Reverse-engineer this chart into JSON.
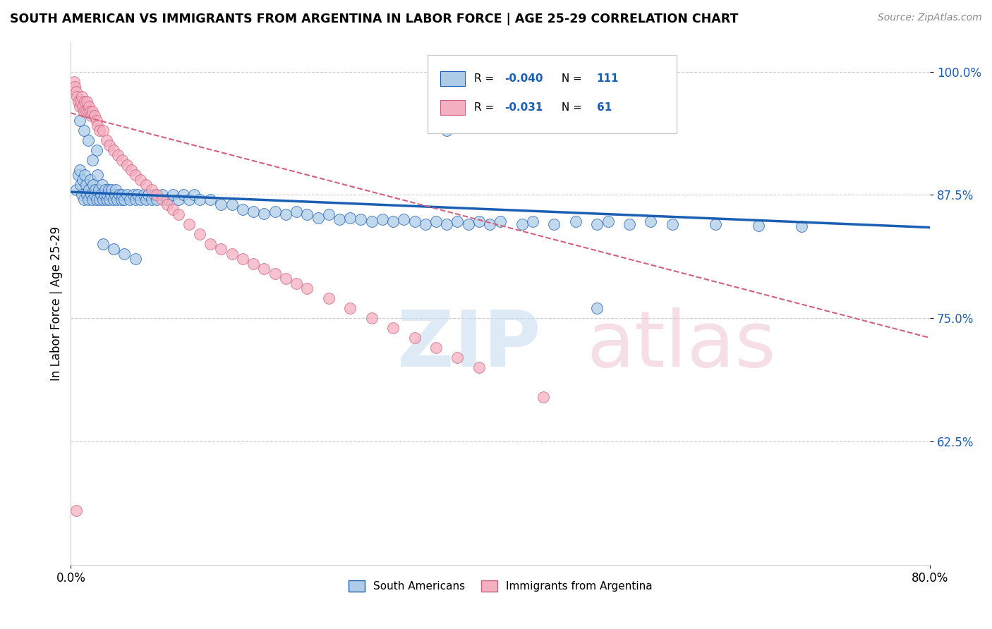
{
  "title": "SOUTH AMERICAN VS IMMIGRANTS FROM ARGENTINA IN LABOR FORCE | AGE 25-29 CORRELATION CHART",
  "source": "Source: ZipAtlas.com",
  "ylabel": "In Labor Force | Age 25-29",
  "xlim": [
    0.0,
    0.8
  ],
  "ylim": [
    0.5,
    1.03
  ],
  "yticks": [
    0.625,
    0.75,
    0.875,
    1.0
  ],
  "ytick_labels": [
    "62.5%",
    "75.0%",
    "87.5%",
    "100.0%"
  ],
  "xticks": [
    0.0,
    0.8
  ],
  "xtick_labels": [
    "0.0%",
    "80.0%"
  ],
  "blue_R": -0.04,
  "blue_N": 111,
  "pink_R": -0.031,
  "pink_N": 61,
  "blue_color": "#aecce8",
  "pink_color": "#f4afc0",
  "trend_blue_color": "#1a5fb4",
  "trend_pink_color": "#d46080",
  "legend_blue_label": "South Americans",
  "legend_pink_label": "Immigrants from Argentina",
  "blue_trend_x0": 0.0,
  "blue_trend_y0": 0.878,
  "blue_trend_x1": 0.8,
  "blue_trend_y1": 0.842,
  "pink_trend_x0": 0.0,
  "pink_trend_y0": 0.958,
  "pink_trend_x1": 0.8,
  "pink_trend_y1": 0.73,
  "blue_x": [
    0.005,
    0.007,
    0.008,
    0.009,
    0.01,
    0.011,
    0.012,
    0.013,
    0.014,
    0.015,
    0.016,
    0.017,
    0.018,
    0.019,
    0.02,
    0.021,
    0.022,
    0.023,
    0.024,
    0.025,
    0.026,
    0.027,
    0.028,
    0.029,
    0.03,
    0.031,
    0.032,
    0.033,
    0.034,
    0.035,
    0.036,
    0.037,
    0.038,
    0.04,
    0.041,
    0.042,
    0.043,
    0.045,
    0.047,
    0.048,
    0.05,
    0.052,
    0.055,
    0.058,
    0.06,
    0.062,
    0.065,
    0.068,
    0.07,
    0.072,
    0.075,
    0.078,
    0.08,
    0.085,
    0.09,
    0.095,
    0.1,
    0.105,
    0.11,
    0.115,
    0.12,
    0.13,
    0.14,
    0.15,
    0.16,
    0.17,
    0.18,
    0.19,
    0.2,
    0.21,
    0.22,
    0.23,
    0.24,
    0.25,
    0.26,
    0.27,
    0.28,
    0.29,
    0.3,
    0.31,
    0.32,
    0.33,
    0.34,
    0.35,
    0.36,
    0.37,
    0.38,
    0.39,
    0.4,
    0.42,
    0.43,
    0.45,
    0.47,
    0.49,
    0.5,
    0.52,
    0.54,
    0.56,
    0.6,
    0.64,
    0.68,
    0.024,
    0.016,
    0.012,
    0.008,
    0.02,
    0.03,
    0.04,
    0.05,
    0.06,
    0.35,
    0.49
  ],
  "blue_y": [
    0.88,
    0.895,
    0.9,
    0.885,
    0.875,
    0.89,
    0.87,
    0.895,
    0.885,
    0.875,
    0.87,
    0.88,
    0.89,
    0.875,
    0.87,
    0.885,
    0.875,
    0.88,
    0.87,
    0.895,
    0.88,
    0.87,
    0.875,
    0.885,
    0.87,
    0.875,
    0.88,
    0.87,
    0.875,
    0.88,
    0.87,
    0.875,
    0.88,
    0.87,
    0.875,
    0.88,
    0.87,
    0.875,
    0.87,
    0.875,
    0.87,
    0.875,
    0.87,
    0.875,
    0.87,
    0.875,
    0.87,
    0.875,
    0.87,
    0.875,
    0.87,
    0.875,
    0.87,
    0.875,
    0.87,
    0.875,
    0.87,
    0.875,
    0.87,
    0.875,
    0.87,
    0.87,
    0.865,
    0.865,
    0.86,
    0.858,
    0.856,
    0.858,
    0.855,
    0.858,
    0.855,
    0.852,
    0.855,
    0.85,
    0.852,
    0.85,
    0.848,
    0.85,
    0.848,
    0.85,
    0.848,
    0.845,
    0.848,
    0.845,
    0.848,
    0.845,
    0.848,
    0.845,
    0.848,
    0.845,
    0.848,
    0.845,
    0.848,
    0.845,
    0.848,
    0.845,
    0.848,
    0.845,
    0.845,
    0.844,
    0.843,
    0.92,
    0.93,
    0.94,
    0.95,
    0.91,
    0.825,
    0.82,
    0.815,
    0.81,
    0.94,
    0.76
  ],
  "pink_x": [
    0.003,
    0.004,
    0.005,
    0.006,
    0.007,
    0.008,
    0.009,
    0.01,
    0.011,
    0.012,
    0.013,
    0.014,
    0.015,
    0.016,
    0.017,
    0.018,
    0.019,
    0.02,
    0.022,
    0.024,
    0.025,
    0.027,
    0.03,
    0.033,
    0.036,
    0.04,
    0.044,
    0.048,
    0.052,
    0.056,
    0.06,
    0.065,
    0.07,
    0.075,
    0.08,
    0.085,
    0.09,
    0.095,
    0.1,
    0.11,
    0.12,
    0.13,
    0.14,
    0.15,
    0.16,
    0.17,
    0.18,
    0.19,
    0.2,
    0.21,
    0.22,
    0.24,
    0.26,
    0.28,
    0.3,
    0.32,
    0.34,
    0.36,
    0.38,
    0.44,
    0.005
  ],
  "pink_y": [
    0.99,
    0.985,
    0.98,
    0.975,
    0.97,
    0.965,
    0.97,
    0.975,
    0.965,
    0.96,
    0.97,
    0.96,
    0.97,
    0.96,
    0.965,
    0.96,
    0.955,
    0.96,
    0.955,
    0.95,
    0.945,
    0.94,
    0.94,
    0.93,
    0.925,
    0.92,
    0.915,
    0.91,
    0.905,
    0.9,
    0.895,
    0.89,
    0.885,
    0.88,
    0.875,
    0.87,
    0.865,
    0.86,
    0.855,
    0.845,
    0.835,
    0.825,
    0.82,
    0.815,
    0.81,
    0.805,
    0.8,
    0.795,
    0.79,
    0.785,
    0.78,
    0.77,
    0.76,
    0.75,
    0.74,
    0.73,
    0.72,
    0.71,
    0.7,
    0.67,
    0.555
  ]
}
